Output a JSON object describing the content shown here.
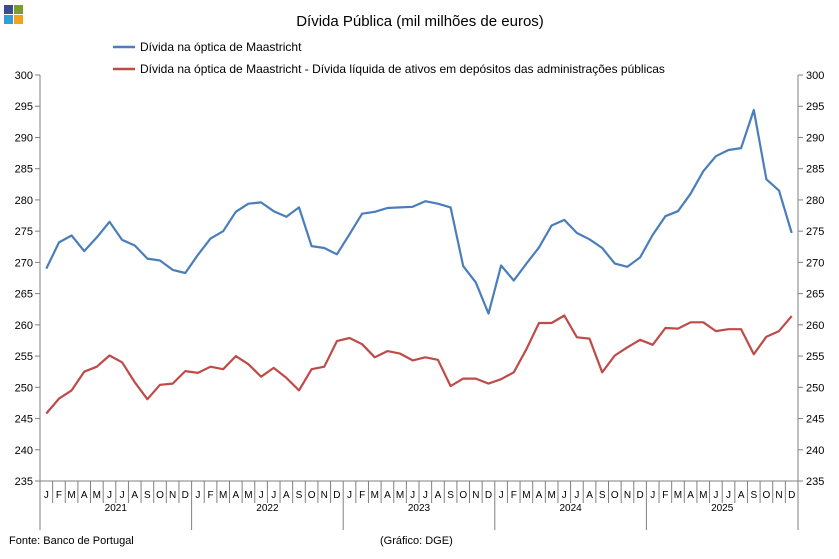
{
  "chart_data": {
    "type": "line",
    "title": "Dívida Pública (mil milhões de euros)",
    "ylim": [
      235,
      300
    ],
    "yticks": [
      235,
      240,
      245,
      250,
      255,
      260,
      265,
      270,
      275,
      280,
      285,
      290,
      295,
      300
    ],
    "month_labels": [
      "J",
      "F",
      "M",
      "A",
      "M",
      "J",
      "J",
      "A",
      "S",
      "O",
      "N",
      "D"
    ],
    "years": [
      "2021",
      "2022",
      "2023",
      "2024",
      "2025"
    ],
    "series": [
      {
        "name": "Dívida na óptica de Maastricht",
        "color": "#4a7ebb",
        "values": [
          269.0,
          273.2,
          274.3,
          271.8,
          274.0,
          276.5,
          273.6,
          272.7,
          270.6,
          270.3,
          268.8,
          268.3,
          271.2,
          273.8,
          275.0,
          278.1,
          279.4,
          279.6,
          278.2,
          277.3,
          278.8,
          272.6,
          272.3,
          271.3,
          274.5,
          277.8,
          278.1,
          278.7,
          278.8,
          278.9,
          279.8,
          279.4,
          278.8,
          269.4,
          266.8,
          261.8,
          269.5,
          267.1,
          269.8,
          272.4,
          275.9,
          276.8,
          274.7,
          273.7,
          272.3,
          269.8,
          269.3,
          270.8,
          274.4,
          277.4,
          278.2,
          281.0,
          284.6,
          287.0,
          288.0,
          288.3,
          294.4,
          283.3,
          281.5,
          274.7
        ]
      },
      {
        "name": "Dívida na óptica de Maastricht - Dívida líquida de ativos em depósitos das administrações públicas",
        "color": "#be4b48",
        "values": [
          245.8,
          248.2,
          249.5,
          252.5,
          253.3,
          255.1,
          254.0,
          250.8,
          248.1,
          250.4,
          250.6,
          252.6,
          252.3,
          253.3,
          252.9,
          255.0,
          253.7,
          251.7,
          253.1,
          251.5,
          249.5,
          252.9,
          253.3,
          257.4,
          257.9,
          256.9,
          254.8,
          255.8,
          255.4,
          254.3,
          254.8,
          254.4,
          250.2,
          251.4,
          251.4,
          250.6,
          251.3,
          252.4,
          256.1,
          260.3,
          260.3,
          261.5,
          258.0,
          257.8,
          252.4,
          255.1,
          256.4,
          257.6,
          256.8,
          259.5,
          259.4,
          260.4,
          260.4,
          259.0,
          259.3,
          259.3,
          255.3,
          258.1,
          259.0,
          261.4
        ]
      }
    ]
  },
  "footer": {
    "source": "Fonte: Banco de Portugal",
    "credit": "(Gráfico: DGE)"
  },
  "logo_colors": [
    "#3e4a8f",
    "#7a9e2e",
    "#2f9fd8",
    "#f2a21b"
  ]
}
